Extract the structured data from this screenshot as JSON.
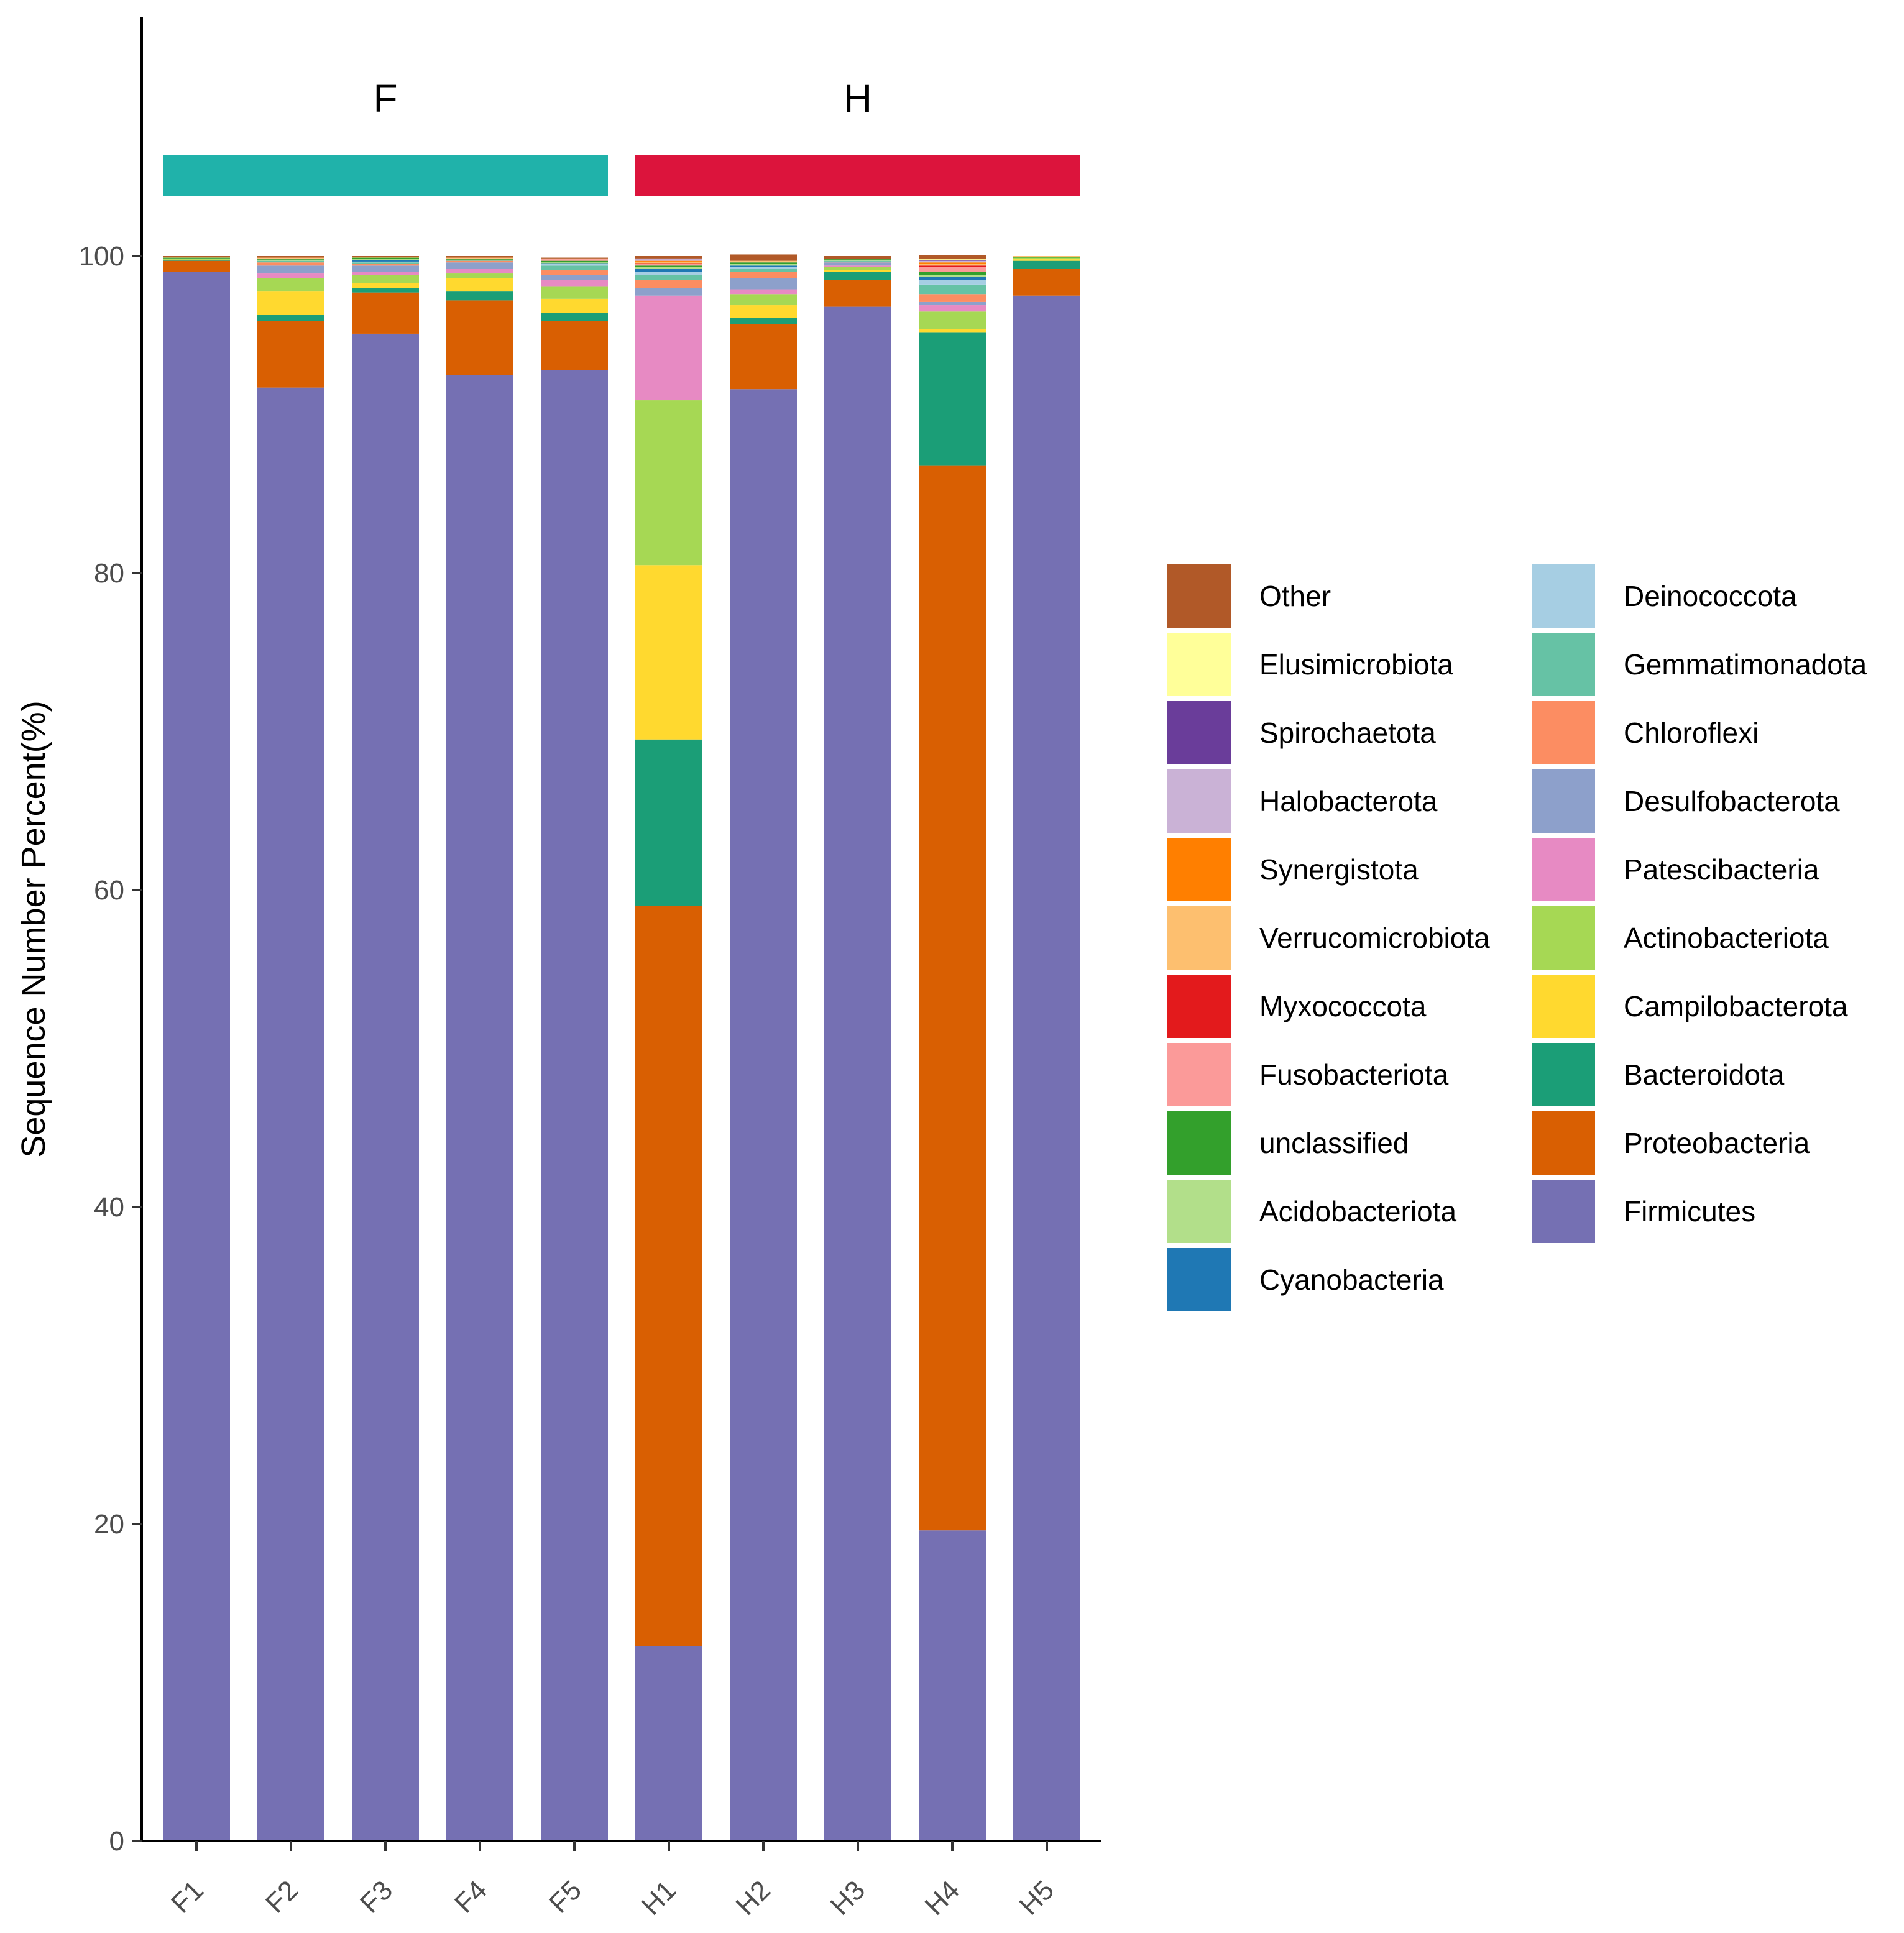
{
  "chart_data": {
    "type": "bar",
    "stacked": true,
    "ylabel": "Sequence Number Percent(%)",
    "xlabel": "",
    "ylim": [
      0,
      100
    ],
    "yticks": [
      0,
      20,
      40,
      60,
      80,
      100
    ],
    "categories": [
      "F1",
      "F2",
      "F3",
      "F4",
      "F5",
      "H1",
      "H2",
      "H3",
      "H4",
      "H5"
    ],
    "groups": [
      {
        "label": "F",
        "members": [
          "F1",
          "F2",
          "F3",
          "F4",
          "F5"
        ],
        "color": "#20B2AA"
      },
      {
        "label": "H",
        "members": [
          "H1",
          "H2",
          "H3",
          "H4",
          "H5"
        ],
        "color": "#DC143C"
      }
    ],
    "legend_position": "right",
    "grid": false,
    "series": [
      {
        "name": "Firmicutes",
        "color": "#7570B3",
        "values": [
          99.0,
          91.7,
          95.1,
          92.5,
          92.8,
          12.3,
          91.6,
          96.8,
          19.6,
          97.5
        ]
      },
      {
        "name": "Proteobacteria",
        "color": "#D95F02",
        "values": [
          0.7,
          4.2,
          2.6,
          4.7,
          3.1,
          46.7,
          4.1,
          1.7,
          67.2,
          1.7
        ]
      },
      {
        "name": "Bacteroidota",
        "color": "#1B9E77",
        "values": [
          0.05,
          0.4,
          0.3,
          0.6,
          0.5,
          10.5,
          0.4,
          0.5,
          8.4,
          0.5
        ]
      },
      {
        "name": "Campilobacterota",
        "color": "#FFD92F",
        "values": [
          0.02,
          1.5,
          0.3,
          0.8,
          0.9,
          11.0,
          0.8,
          0.1,
          0.2,
          0.1
        ]
      },
      {
        "name": "Actinobacteriota",
        "color": "#A6D854",
        "values": [
          0.05,
          0.8,
          0.5,
          0.3,
          0.8,
          10.4,
          0.7,
          0.2,
          1.1,
          0.1
        ]
      },
      {
        "name": "Patescibacteria",
        "color": "#E78AC3",
        "values": [
          0.0,
          0.3,
          0.2,
          0.3,
          0.4,
          6.6,
          0.3,
          0.1,
          0.4,
          0.0
        ]
      },
      {
        "name": "Desulfobacterota",
        "color": "#8DA0CB",
        "values": [
          0.03,
          0.5,
          0.4,
          0.4,
          0.3,
          0.5,
          0.7,
          0.2,
          0.2,
          0.0
        ]
      },
      {
        "name": "Chloroflexi",
        "color": "#FC8D62",
        "values": [
          0.0,
          0.2,
          0.1,
          0.1,
          0.3,
          0.5,
          0.4,
          0.05,
          0.5,
          0.0
        ]
      },
      {
        "name": "Gemmatimonadota",
        "color": "#66C2A5",
        "values": [
          0.0,
          0.1,
          0.1,
          0.05,
          0.3,
          0.3,
          0.2,
          0.05,
          0.6,
          0.0
        ]
      },
      {
        "name": "Deinococcota",
        "color": "#A6CEE3",
        "values": [
          0.0,
          0.0,
          0.05,
          0.0,
          0.1,
          0.2,
          0.1,
          0.0,
          0.3,
          0.0
        ]
      },
      {
        "name": "Cyanobacteria",
        "color": "#1F78B4",
        "values": [
          0.0,
          0.0,
          0.1,
          0.0,
          0.05,
          0.2,
          0.1,
          0.0,
          0.2,
          0.0
        ]
      },
      {
        "name": "Acidobacteriota",
        "color": "#B2DF8A",
        "values": [
          0.0,
          0.05,
          0.05,
          0.0,
          0.05,
          0.1,
          0.1,
          0.05,
          0.1,
          0.0
        ]
      },
      {
        "name": "unclassified",
        "color": "#33A02C",
        "values": [
          0.05,
          0.05,
          0.1,
          0.05,
          0.1,
          0.1,
          0.1,
          0.05,
          0.2,
          0.05
        ]
      },
      {
        "name": "Fusobacteriota",
        "color": "#FB9A99",
        "values": [
          0.0,
          0.05,
          0.0,
          0.05,
          0.1,
          0.1,
          0.05,
          0.0,
          0.3,
          0.0
        ]
      },
      {
        "name": "Myxococcota",
        "color": "#E31A1C",
        "values": [
          0.0,
          0.0,
          0.0,
          0.0,
          0.0,
          0.05,
          0.0,
          0.0,
          0.1,
          0.0
        ]
      },
      {
        "name": "Verrucomicrobiota",
        "color": "#FDBF6F",
        "values": [
          0.02,
          0.05,
          0.05,
          0.05,
          0.05,
          0.1,
          0.05,
          0.0,
          0.1,
          0.05
        ]
      },
      {
        "name": "Synergistota",
        "color": "#FF7F00",
        "values": [
          0.0,
          0.0,
          0.0,
          0.0,
          0.0,
          0.05,
          0.0,
          0.0,
          0.1,
          0.0
        ]
      },
      {
        "name": "Halobacterota",
        "color": "#CAB2D6",
        "values": [
          0.0,
          0.0,
          0.0,
          0.0,
          0.0,
          0.1,
          0.0,
          0.0,
          0.1,
          0.0
        ]
      },
      {
        "name": "Spirochaetota",
        "color": "#6A3D9A",
        "values": [
          0.0,
          0.0,
          0.0,
          0.0,
          0.0,
          0.05,
          0.0,
          0.0,
          0.05,
          0.0
        ]
      },
      {
        "name": "Elusimicrobiota",
        "color": "#FFFF99",
        "values": [
          0.0,
          0.0,
          0.0,
          0.0,
          0.0,
          0.0,
          0.0,
          0.0,
          0.05,
          0.0
        ]
      },
      {
        "name": "Other",
        "color": "#B15928",
        "values": [
          0.08,
          0.1,
          0.05,
          0.1,
          0.05,
          0.15,
          0.4,
          0.2,
          0.25,
          0.0
        ]
      }
    ],
    "legend_order": [
      "Other",
      "Elusimicrobiota",
      "Spirochaetota",
      "Halobacterota",
      "Synergistota",
      "Verrucomicrobiota",
      "Myxococcota",
      "Fusobacteriota",
      "unclassified",
      "Acidobacteriota",
      "Cyanobacteria",
      "Deinococcota",
      "Gemmatimonadota",
      "Chloroflexi",
      "Desulfobacterota",
      "Patescibacteria",
      "Actinobacteriota",
      "Campilobacterota",
      "Bacteroidota",
      "Proteobacteria",
      "Firmicutes"
    ]
  }
}
